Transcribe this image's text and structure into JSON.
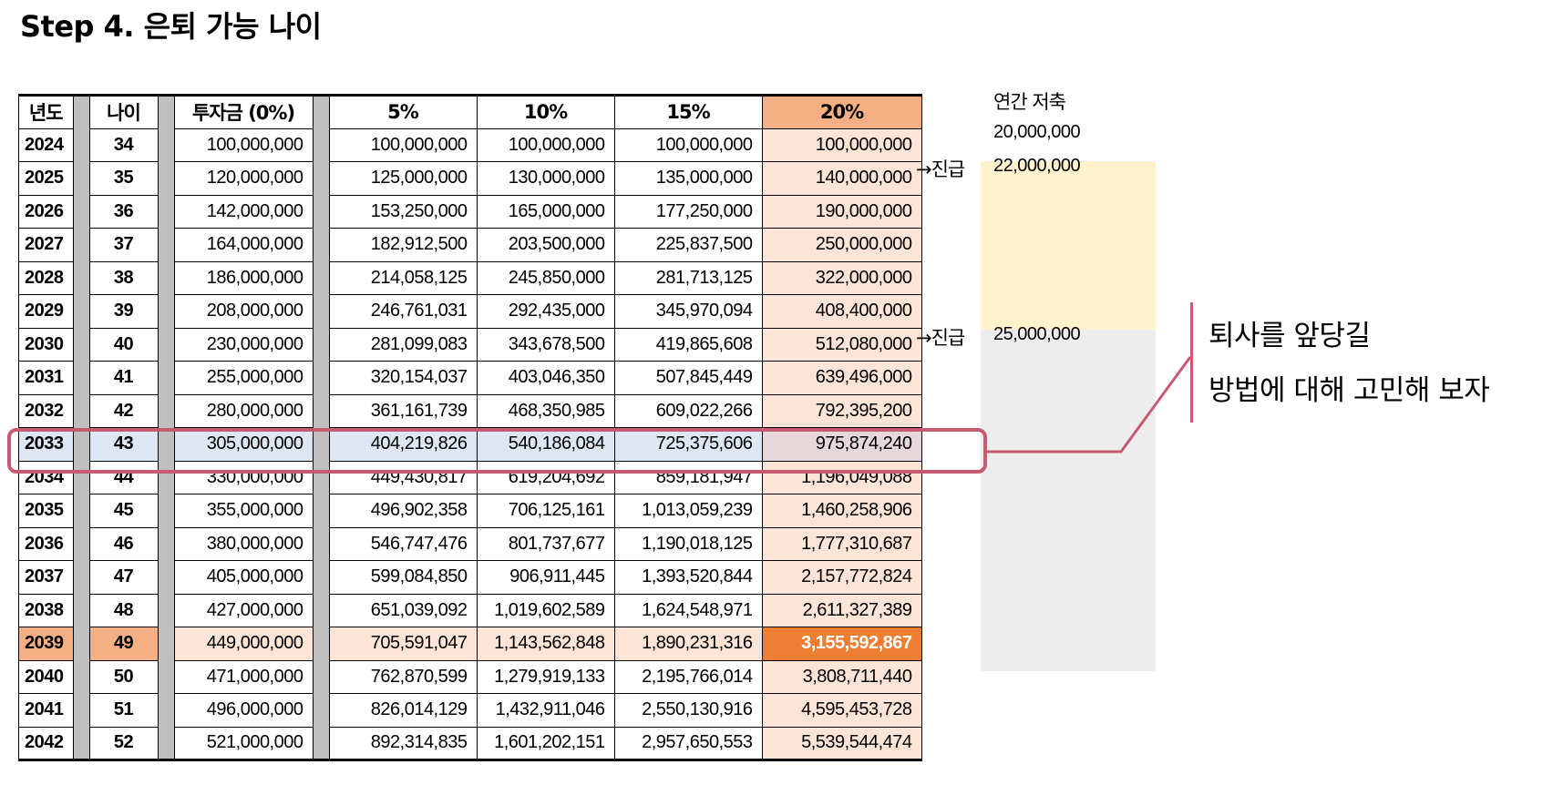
{
  "title": "Step 4. 은퇴 가능 나이",
  "headers": {
    "year": "년도",
    "age": "나이",
    "c0": "투자금 (0%)",
    "c5": "5%",
    "c10": "10%",
    "c15": "15%",
    "c20": "20%"
  },
  "rows": [
    {
      "year": "2024",
      "age": "34",
      "c0": "100,000,000",
      "c5": "100,000,000",
      "c10": "100,000,000",
      "c15": "100,000,000",
      "c20": "100,000,000"
    },
    {
      "year": "2025",
      "age": "35",
      "c0": "120,000,000",
      "c5": "125,000,000",
      "c10": "130,000,000",
      "c15": "135,000,000",
      "c20": "140,000,000"
    },
    {
      "year": "2026",
      "age": "36",
      "c0": "142,000,000",
      "c5": "153,250,000",
      "c10": "165,000,000",
      "c15": "177,250,000",
      "c20": "190,000,000"
    },
    {
      "year": "2027",
      "age": "37",
      "c0": "164,000,000",
      "c5": "182,912,500",
      "c10": "203,500,000",
      "c15": "225,837,500",
      "c20": "250,000,000"
    },
    {
      "year": "2028",
      "age": "38",
      "c0": "186,000,000",
      "c5": "214,058,125",
      "c10": "245,850,000",
      "c15": "281,713,125",
      "c20": "322,000,000"
    },
    {
      "year": "2029",
      "age": "39",
      "c0": "208,000,000",
      "c5": "246,761,031",
      "c10": "292,435,000",
      "c15": "345,970,094",
      "c20": "408,400,000"
    },
    {
      "year": "2030",
      "age": "40",
      "c0": "230,000,000",
      "c5": "281,099,083",
      "c10": "343,678,500",
      "c15": "419,865,608",
      "c20": "512,080,000"
    },
    {
      "year": "2031",
      "age": "41",
      "c0": "255,000,000",
      "c5": "320,154,037",
      "c10": "403,046,350",
      "c15": "507,845,449",
      "c20": "639,496,000"
    },
    {
      "year": "2032",
      "age": "42",
      "c0": "280,000,000",
      "c5": "361,161,739",
      "c10": "468,350,985",
      "c15": "609,022,266",
      "c20": "792,395,200"
    },
    {
      "year": "2033",
      "age": "43",
      "c0": "305,000,000",
      "c5": "404,219,826",
      "c10": "540,186,084",
      "c15": "725,375,606",
      "c20": "975,874,240"
    },
    {
      "year": "2034",
      "age": "44",
      "c0": "330,000,000",
      "c5": "449,430,817",
      "c10": "619,204,692",
      "c15": "859,181,947",
      "c20": "1,196,049,088"
    },
    {
      "year": "2035",
      "age": "45",
      "c0": "355,000,000",
      "c5": "496,902,358",
      "c10": "706,125,161",
      "c15": "1,013,059,239",
      "c20": "1,460,258,906"
    },
    {
      "year": "2036",
      "age": "46",
      "c0": "380,000,000",
      "c5": "546,747,476",
      "c10": "801,737,677",
      "c15": "1,190,018,125",
      "c20": "1,777,310,687"
    },
    {
      "year": "2037",
      "age": "47",
      "c0": "405,000,000",
      "c5": "599,084,850",
      "c10": "906,911,445",
      "c15": "1,393,520,844",
      "c20": "2,157,772,824"
    },
    {
      "year": "2038",
      "age": "48",
      "c0": "427,000,000",
      "c5": "651,039,092",
      "c10": "1,019,602,589",
      "c15": "1,624,548,971",
      "c20": "2,611,327,389"
    },
    {
      "year": "2039",
      "age": "49",
      "c0": "449,000,000",
      "c5": "705,591,047",
      "c10": "1,143,562,848",
      "c15": "1,890,231,316",
      "c20": "3,155,592,867"
    },
    {
      "year": "2040",
      "age": "50",
      "c0": "471,000,000",
      "c5": "762,870,599",
      "c10": "1,279,919,133",
      "c15": "2,195,766,014",
      "c20": "3,808,711,440"
    },
    {
      "year": "2041",
      "age": "51",
      "c0": "496,000,000",
      "c5": "826,014,129",
      "c10": "1,432,911,046",
      "c15": "2,550,130,916",
      "c20": "4,595,453,728"
    },
    {
      "year": "2042",
      "age": "52",
      "c0": "521,000,000",
      "c5": "892,314,835",
      "c10": "1,601,202,151",
      "c15": "2,957,650,553",
      "c20": "5,539,544,474"
    }
  ],
  "side": {
    "savings_header": "연간 저축",
    "savings_2024": "20,000,000",
    "promo_2025": "→진급",
    "savings_2025": "22,000,000",
    "promo_2030": "→진급",
    "savings_2030": "25,000,000"
  },
  "callout": {
    "line1": "퇴사를 앞당길",
    "line2": "방법에 대해 고민해 보자"
  },
  "colors": {
    "col20_header": "#f4b084",
    "col20_body": "#fce4d6",
    "peak_cell": "#ed7d31",
    "gap_column": "#bfbfbf",
    "zone_yellow": "#fff2cc",
    "zone_gray": "#ededed",
    "highlight_box": "#c55a72",
    "selected_row": "#dde6f3"
  }
}
